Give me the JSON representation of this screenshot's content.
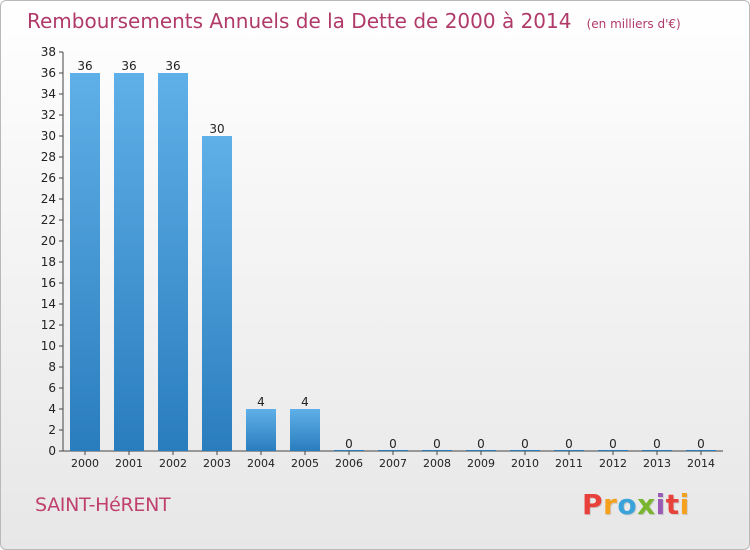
{
  "page": {
    "title": "Remboursements Annuels de la Dette de 2000 à 2014",
    "unit": "(en milliers d'€)",
    "commune": "SAINT-HéRENT",
    "logo": "Proxiti",
    "logo_colors": [
      "#e8413c",
      "#f4a11d",
      "#3aa3d9",
      "#7ab530",
      "#9b59b6",
      "#e8413c",
      "#f4a11d"
    ]
  },
  "chart_data": {
    "type": "bar",
    "title": "Remboursements Annuels de la Dette de 2000 à 2014",
    "unit": "(en milliers d'€)",
    "categories": [
      "2000",
      "2001",
      "2002",
      "2003",
      "2004",
      "2005",
      "2006",
      "2007",
      "2008",
      "2009",
      "2010",
      "2011",
      "2012",
      "2013",
      "2014"
    ],
    "values": [
      36,
      36,
      36,
      30,
      4,
      4,
      0,
      0,
      0,
      0,
      0,
      0,
      0,
      0,
      0
    ],
    "ylim": [
      0,
      38
    ],
    "yticks": [
      0,
      2,
      4,
      6,
      8,
      10,
      12,
      14,
      16,
      18,
      20,
      22,
      24,
      26,
      28,
      30,
      32,
      34,
      36,
      38
    ],
    "grid": false,
    "legend": "none",
    "bar_color_top": "#5fb0e8",
    "bar_color_bottom": "#2a7dbd"
  }
}
